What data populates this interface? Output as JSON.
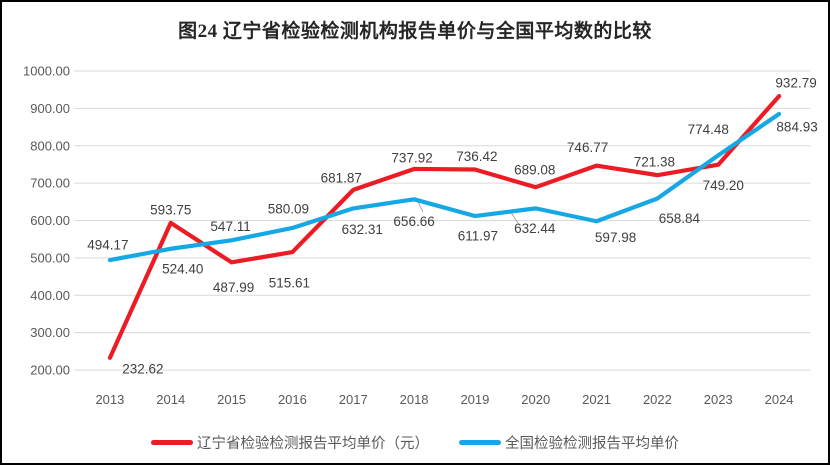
{
  "chart_data": {
    "type": "line",
    "title": "图24 辽宁省检验检测机构报告单价与全国平均数的比较",
    "categories": [
      "2013",
      "2014",
      "2015",
      "2016",
      "2017",
      "2018",
      "2019",
      "2020",
      "2021",
      "2022",
      "2023",
      "2024"
    ],
    "series": [
      {
        "name": "辽宁省检验检测报告平均单价（元）",
        "color": "#ED1B23",
        "values": [
          232.62,
          593.75,
          487.99,
          515.61,
          681.87,
          737.92,
          736.42,
          689.08,
          746.77,
          721.38,
          749.2,
          932.79
        ]
      },
      {
        "name": "全国检验检测报告平均单价",
        "color": "#16A8E4",
        "values": [
          494.17,
          524.4,
          547.11,
          580.09,
          632.31,
          656.66,
          611.97,
          632.44,
          597.98,
          658.84,
          774.48,
          884.93
        ]
      }
    ],
    "ylim": [
      200,
      1000
    ],
    "ytick_step": 100,
    "y_tick_labels": [
      "200.00",
      "300.00",
      "400.00",
      "500.00",
      "600.00",
      "700.00",
      "800.00",
      "900.00",
      "1000.00"
    ],
    "grid": true,
    "data_labels": true,
    "legend_position": "bottom"
  },
  "colors": {
    "grid_line": "#D9D9D9",
    "axis_text": "#595959",
    "data_label_text": "#404040",
    "leader_line": "#A6A6A6",
    "frame_border": "#000000"
  }
}
